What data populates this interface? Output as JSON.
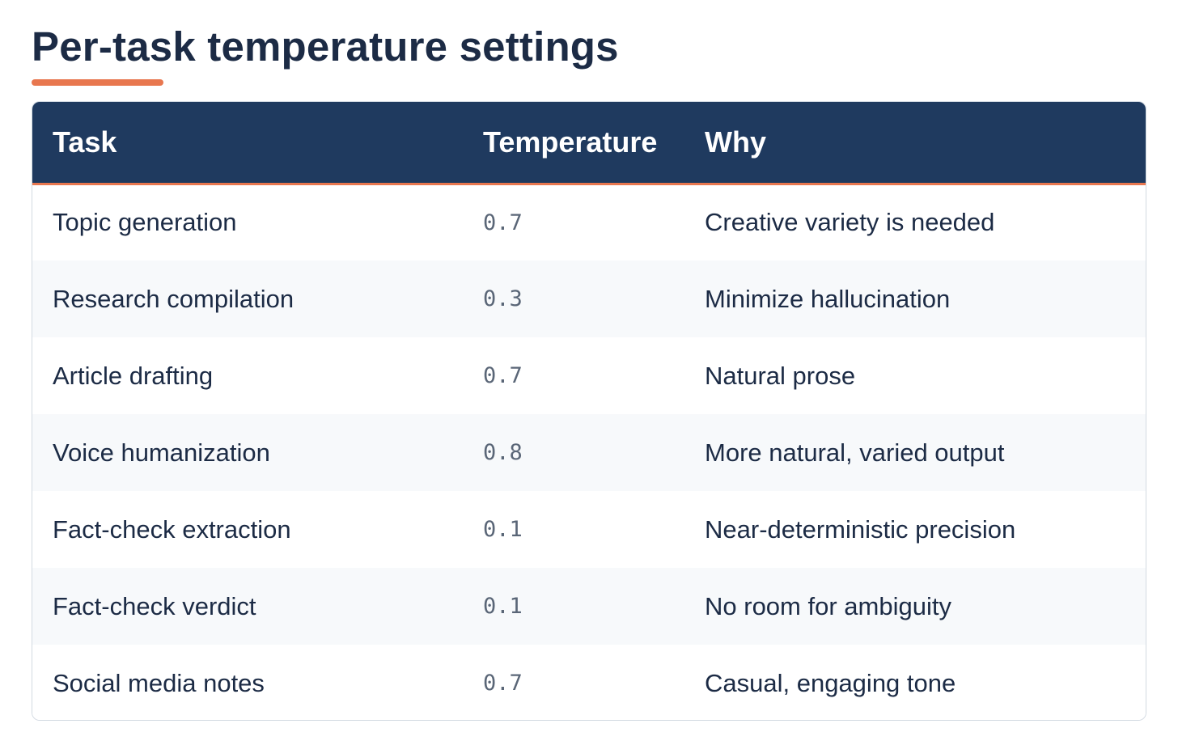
{
  "page": {
    "title": "Per-task temperature settings",
    "accent_color": "#e8774f",
    "header_color": "#1f3a5f"
  },
  "table": {
    "headers": [
      "Task",
      "Temperature",
      "Why"
    ],
    "rows": [
      {
        "task": "Topic generation",
        "temperature": "0.7",
        "why": "Creative variety is needed"
      },
      {
        "task": "Research compilation",
        "temperature": "0.3",
        "why": "Minimize hallucination"
      },
      {
        "task": "Article drafting",
        "temperature": "0.7",
        "why": "Natural prose"
      },
      {
        "task": "Voice humanization",
        "temperature": "0.8",
        "why": "More natural, varied output"
      },
      {
        "task": "Fact-check extraction",
        "temperature": "0.1",
        "why": "Near-deterministic precision"
      },
      {
        "task": "Fact-check verdict",
        "temperature": "0.1",
        "why": "No room for ambiguity"
      },
      {
        "task": "Social media notes",
        "temperature": "0.7",
        "why": "Casual, engaging tone"
      }
    ]
  }
}
